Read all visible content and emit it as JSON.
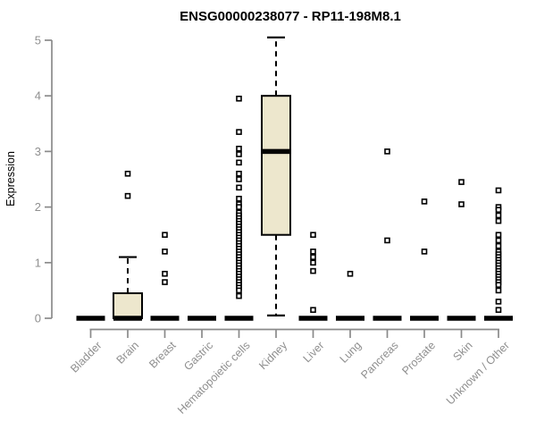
{
  "chart_data": {
    "type": "boxplot",
    "title": "ENSG00000238077 - RP11-198M8.1",
    "ylabel": "Expression",
    "xlabel": "",
    "ylim": [
      0,
      5.2
    ],
    "yticks": [
      0,
      1,
      2,
      3,
      4,
      5
    ],
    "grid": false,
    "legend": null,
    "categories": [
      "Bladder",
      "Brain",
      "Breast",
      "Gastric",
      "Hematopoietic cells",
      "Kidney",
      "Liver",
      "Lung",
      "Pancreas",
      "Prostate",
      "Skin",
      "Unknown / Other"
    ],
    "boxes": [
      {
        "category": "Bladder",
        "q1": 0,
        "median": 0,
        "q3": 0,
        "whisker_low": 0,
        "whisker_high": 0,
        "outliers": []
      },
      {
        "category": "Brain",
        "q1": 0,
        "median": 0,
        "q3": 0.45,
        "whisker_low": 0,
        "whisker_high": 1.1,
        "outliers": [
          2.6,
          2.2
        ]
      },
      {
        "category": "Breast",
        "q1": 0,
        "median": 0,
        "q3": 0,
        "whisker_low": 0,
        "whisker_high": 0,
        "outliers": [
          1.5,
          1.2,
          0.8,
          0.65
        ]
      },
      {
        "category": "Gastric",
        "q1": 0,
        "median": 0,
        "q3": 0,
        "whisker_low": 0,
        "whisker_high": 0,
        "outliers": []
      },
      {
        "category": "Hematopoietic cells",
        "q1": 0,
        "median": 0,
        "q3": 0,
        "whisker_low": 0,
        "whisker_high": 0,
        "outliers": [
          3.95,
          3.35,
          3.05,
          2.95,
          2.8,
          2.6,
          2.5,
          2.35,
          2.15,
          2.05,
          2.0,
          1.9,
          1.85,
          1.8,
          1.75,
          1.7,
          1.65,
          1.6,
          1.55,
          1.5,
          1.45,
          1.4,
          1.35,
          1.3,
          1.25,
          1.2,
          1.15,
          1.1,
          1.05,
          1.0,
          0.95,
          0.9,
          0.85,
          0.8,
          0.75,
          0.7,
          0.65,
          0.6,
          0.55,
          0.5,
          0.4
        ]
      },
      {
        "category": "Kidney",
        "q1": 1.5,
        "median": 3.0,
        "q3": 4.0,
        "whisker_low": 0.05,
        "whisker_high": 5.05,
        "outliers": []
      },
      {
        "category": "Liver",
        "q1": 0,
        "median": 0,
        "q3": 0,
        "whisker_low": 0,
        "whisker_high": 0,
        "outliers": [
          1.5,
          1.2,
          1.1,
          1.0,
          0.85,
          0.15
        ]
      },
      {
        "category": "Lung",
        "q1": 0,
        "median": 0,
        "q3": 0,
        "whisker_low": 0,
        "whisker_high": 0,
        "outliers": [
          0.8
        ]
      },
      {
        "category": "Pancreas",
        "q1": 0,
        "median": 0,
        "q3": 0,
        "whisker_low": 0,
        "whisker_high": 0,
        "outliers": [
          3.0,
          1.4
        ]
      },
      {
        "category": "Prostate",
        "q1": 0,
        "median": 0,
        "q3": 0,
        "whisker_low": 0,
        "whisker_high": 0,
        "outliers": [
          2.1,
          1.2
        ]
      },
      {
        "category": "Skin",
        "q1": 0,
        "median": 0,
        "q3": 0,
        "whisker_low": 0,
        "whisker_high": 0,
        "outliers": [
          2.45,
          2.05
        ]
      },
      {
        "category": "Unknown / Other",
        "q1": 0,
        "median": 0,
        "q3": 0,
        "whisker_low": 0,
        "whisker_high": 0,
        "outliers": [
          2.3,
          2.0,
          1.95,
          1.85,
          1.75,
          1.5,
          1.4,
          1.3,
          1.2,
          1.15,
          1.1,
          1.05,
          1.0,
          0.95,
          0.9,
          0.85,
          0.8,
          0.75,
          0.7,
          0.65,
          0.6,
          0.5,
          0.3,
          0.15
        ]
      }
    ],
    "colors": {
      "box_fill": "#EDE7CD",
      "box_border": "#000000",
      "median": "#000000",
      "whisker": "#000000",
      "outlier_fill": "#FFFFFF",
      "outlier_border": "#000000",
      "axis": "#8A8A8A",
      "tick_label": "#8F8F8F",
      "axis_label": "#9D9D9D",
      "title": "#000000",
      "background": "#FFFFFF"
    }
  }
}
